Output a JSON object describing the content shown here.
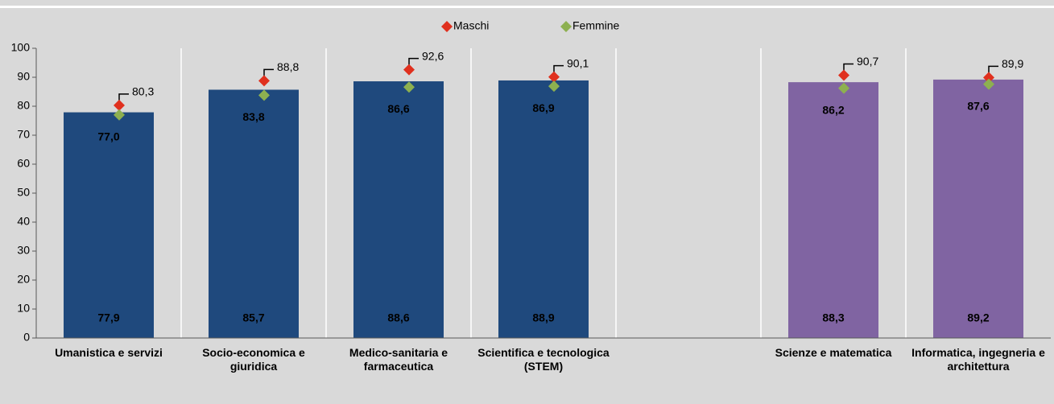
{
  "chart_data": {
    "type": "bar",
    "categories": [
      "Umanistica e servizi",
      "Socio-economica e giuridica",
      "Medico-sanitaria e farmaceutica",
      "Scientifica e tecnologica (STEM)",
      null,
      "Scienze e matematica",
      "Informatica, ingegneria e architettura"
    ],
    "series": [
      {
        "colors": [
          "#1f497d",
          "#1f497d",
          "#1f497d",
          "#1f497d",
          null,
          "#8064a2",
          "#8064a2"
        ],
        "values": [
          77.9,
          85.7,
          88.6,
          88.9,
          null,
          88.3,
          89.2
        ],
        "value_labels": [
          "77,9",
          "85,7",
          "88,6",
          "88,9",
          null,
          "88,3",
          "89,2"
        ]
      },
      {
        "name": "Maschi",
        "color": "#e0301e",
        "values": [
          80.3,
          88.8,
          92.6,
          90.1,
          null,
          90.7,
          89.9
        ],
        "value_labels": [
          "80,3",
          "88,8",
          "92,6",
          "90,1",
          null,
          "90,7",
          "89,9"
        ]
      },
      {
        "name": "Femmine",
        "color": "#8db050",
        "values": [
          77.0,
          83.8,
          86.6,
          86.9,
          null,
          86.2,
          87.6
        ],
        "value_labels": [
          "77,0",
          "83,8",
          "86,6",
          "86,9",
          null,
          "86,2",
          "87,6"
        ]
      }
    ],
    "ylim": [
      0,
      100
    ],
    "yticks": [
      0,
      10,
      20,
      30,
      40,
      50,
      60,
      70,
      80,
      90,
      100
    ]
  }
}
